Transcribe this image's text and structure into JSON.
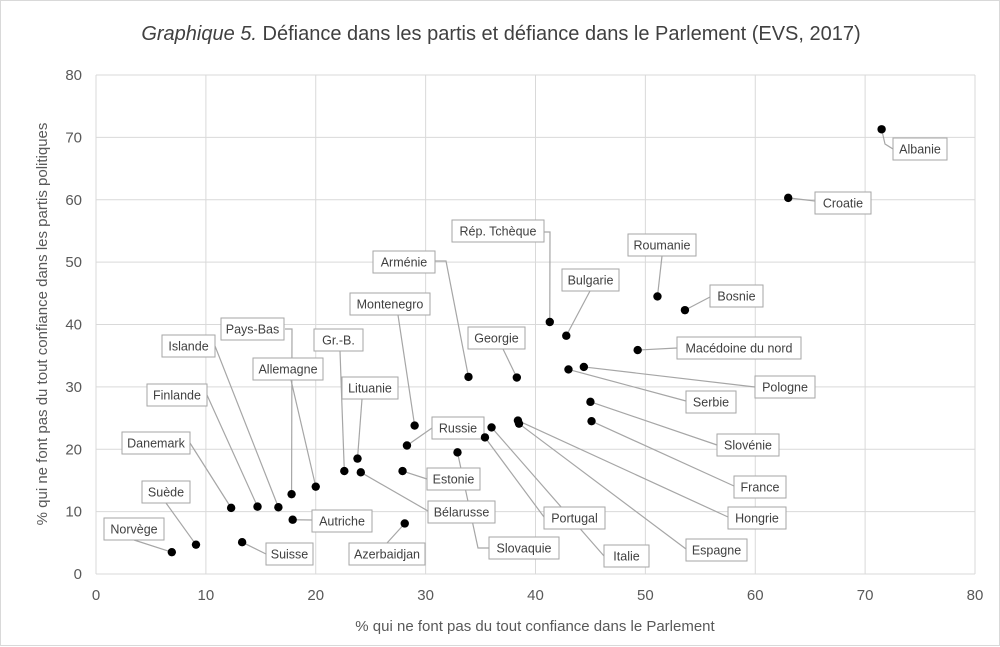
{
  "chart_data": {
    "type": "scatter",
    "title_prefix": "Graphique 5.",
    "title": " Défiance dans les partis et défiance dans le Parlement (EVS, 2017)",
    "xlabel": "% qui ne font pas du tout confiance dans le Parlement",
    "ylabel": "% qui ne font pas du tout confiance dans les partis politiques",
    "xlim": [
      0,
      80
    ],
    "ylim": [
      0,
      80
    ],
    "xticks": [
      0,
      10,
      20,
      30,
      40,
      50,
      60,
      70,
      80
    ],
    "yticks": [
      0,
      10,
      20,
      30,
      40,
      50,
      60,
      70,
      80
    ],
    "grid": true,
    "marker_color": "#000000",
    "points": [
      {
        "label": "Albanie",
        "x": 71.5,
        "y": 71.3
      },
      {
        "label": "Croatie",
        "x": 63.0,
        "y": 60.3
      },
      {
        "label": "Roumanie",
        "x": 51.1,
        "y": 44.5
      },
      {
        "label": "Bosnie",
        "x": 53.6,
        "y": 42.3
      },
      {
        "label": "Rép. Tchèque",
        "x": 41.3,
        "y": 40.4
      },
      {
        "label": "Bulgarie",
        "x": 42.8,
        "y": 38.2
      },
      {
        "label": "Macédoine du nord",
        "x": 49.3,
        "y": 35.9
      },
      {
        "label": "Pologne",
        "x": 44.4,
        "y": 33.2
      },
      {
        "label": "Serbie",
        "x": 43.0,
        "y": 32.8
      },
      {
        "label": "Arménie",
        "x": 33.9,
        "y": 31.6
      },
      {
        "label": "Georgie",
        "x": 38.3,
        "y": 31.5
      },
      {
        "label": "Slovénie",
        "x": 45.0,
        "y": 27.6
      },
      {
        "label": "France",
        "x": 45.1,
        "y": 24.5
      },
      {
        "label": "Hongrie",
        "x": 38.4,
        "y": 24.6
      },
      {
        "label": "Espagne",
        "x": 38.5,
        "y": 24.1
      },
      {
        "label": "Montenegro",
        "x": 29.0,
        "y": 23.8
      },
      {
        "label": "Italie",
        "x": 36.0,
        "y": 23.5
      },
      {
        "label": "Portugal",
        "x": 35.4,
        "y": 21.9
      },
      {
        "label": "Russie",
        "x": 28.3,
        "y": 20.6
      },
      {
        "label": "Slovaquie",
        "x": 32.9,
        "y": 19.5
      },
      {
        "label": "Lituanie",
        "x": 23.8,
        "y": 18.5
      },
      {
        "label": "Gr.-B.",
        "x": 22.6,
        "y": 16.5
      },
      {
        "label": "Bélarusse",
        "x": 24.1,
        "y": 16.3
      },
      {
        "label": "Estonie",
        "x": 27.9,
        "y": 16.5
      },
      {
        "label": "Allemagne",
        "x": 20.0,
        "y": 14.0
      },
      {
        "label": "Pays-Bas",
        "x": 17.8,
        "y": 12.8
      },
      {
        "label": "Islande",
        "x": 16.6,
        "y": 10.7
      },
      {
        "label": "Finlande",
        "x": 14.7,
        "y": 10.8
      },
      {
        "label": "Danemark",
        "x": 12.3,
        "y": 10.6
      },
      {
        "label": "Autriche",
        "x": 17.9,
        "y": 8.7
      },
      {
        "label": "Azerbaidjan",
        "x": 28.1,
        "y": 8.1
      },
      {
        "label": "Suisse",
        "x": 13.3,
        "y": 5.1
      },
      {
        "label": "Suède",
        "x": 9.1,
        "y": 4.7
      },
      {
        "label": "Norvège",
        "x": 6.9,
        "y": 3.5
      }
    ]
  }
}
